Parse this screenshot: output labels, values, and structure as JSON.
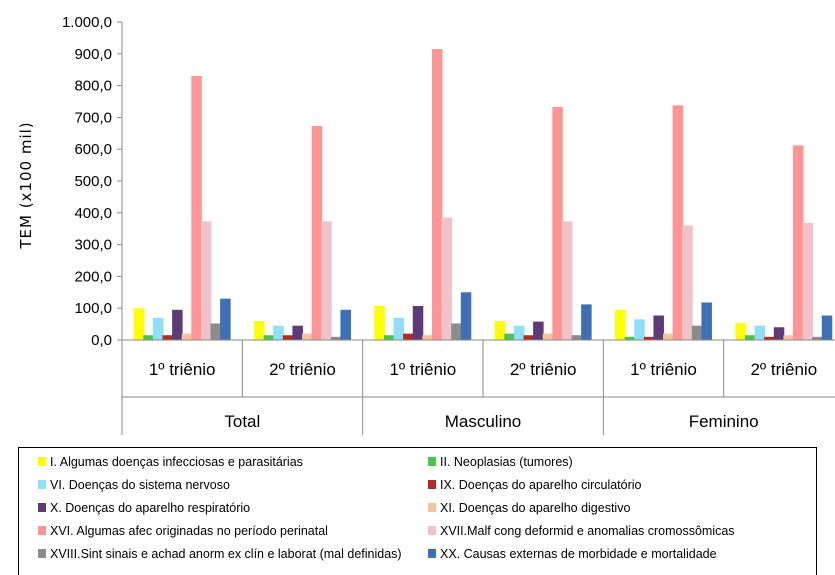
{
  "chart_data": {
    "type": "bar",
    "ylabel": "TEM (x100 mil)",
    "ylim": [
      0,
      1000
    ],
    "yticks": [
      "0,0",
      "100,0",
      "200,0",
      "300,0",
      "400,0",
      "500,0",
      "600,0",
      "700,0",
      "800,0",
      "900,0",
      "1.000,0"
    ],
    "groups": [
      "Total",
      "Masculino",
      "Feminino"
    ],
    "categories": [
      "1º triênio",
      "2º triênio",
      "1º triênio",
      "2º triênio",
      "1º triênio",
      "2º triênio"
    ],
    "legend_position": "bottom",
    "series": [
      {
        "name": "I.  Algumas doenças infecciosas e parasitárias",
        "color": "#FFFF00",
        "values": [
          100,
          60,
          107,
          60,
          95,
          53
        ]
      },
      {
        "name": "II.  Neoplasias (tumores)",
        "color": "#4CC34C",
        "values": [
          15,
          15,
          15,
          20,
          10,
          15
        ]
      },
      {
        "name": "VI.  Doenças do sistema nervoso",
        "color": "#8EE0F8",
        "values": [
          70,
          45,
          70,
          45,
          65,
          45
        ]
      },
      {
        "name": "IX.  Doenças do aparelho circulatório",
        "color": "#B22A20",
        "values": [
          15,
          15,
          20,
          15,
          10,
          10
        ]
      },
      {
        "name": "X.  Doenças do aparelho respiratório",
        "color": "#5E3A78",
        "values": [
          95,
          45,
          107,
          58,
          77,
          40
        ]
      },
      {
        "name": "XI.  Doenças do aparelho digestivo",
        "color": "#F6C49A",
        "values": [
          20,
          20,
          15,
          20,
          20,
          15
        ]
      },
      {
        "name": "XVI. Algumas afec originadas no período perinatal",
        "color": "#FF9494",
        "values": [
          830,
          673,
          915,
          733,
          738,
          612
        ]
      },
      {
        "name": "XVII.Malf cong deformid e anomalias cromossômicas",
        "color": "#F1C3C8",
        "values": [
          373,
          373,
          385,
          373,
          360,
          368
        ]
      },
      {
        "name": "XVIII.Sint sinais e achad anorm ex clín e laborat (mal definidas)",
        "color": "#8C8C8C",
        "values": [
          52,
          10,
          52,
          15,
          45,
          10
        ]
      },
      {
        "name": "XX.  Causas externas de morbidade e mortalidade",
        "color": "#3F6FB5",
        "values": [
          130,
          95,
          150,
          112,
          118,
          77
        ]
      }
    ]
  }
}
